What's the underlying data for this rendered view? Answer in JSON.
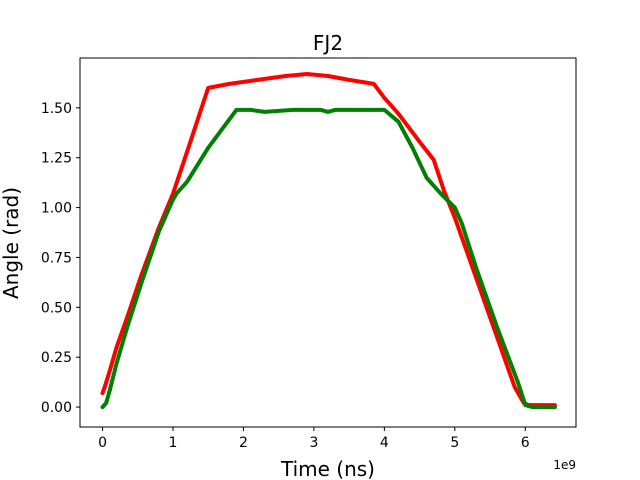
{
  "chart_data": {
    "type": "line",
    "title": "FJ2",
    "xlabel": "Time (ns)",
    "ylabel": "Angle (rad)",
    "x_offset_label": "1e9",
    "x_multiplier": 1000000000,
    "xlim": [
      -0.32,
      6.72
    ],
    "ylim": [
      -0.1,
      1.75
    ],
    "x_ticks": [
      0,
      1,
      2,
      3,
      4,
      5,
      6
    ],
    "x_tick_labels": [
      "0",
      "1",
      "2",
      "3",
      "4",
      "5",
      "6"
    ],
    "y_ticks": [
      0.0,
      0.25,
      0.5,
      0.75,
      1.0,
      1.25,
      1.5
    ],
    "y_tick_labels": [
      "0.00",
      "0.25",
      "0.50",
      "0.75",
      "1.00",
      "1.25",
      "1.50"
    ],
    "grid": false,
    "legend": "none",
    "series": [
      {
        "color": "#ff0000",
        "x": [
          0.0,
          0.03,
          0.1,
          0.2,
          0.35,
          0.55,
          0.8,
          1.0,
          1.2,
          1.5,
          1.8,
          2.2,
          2.6,
          2.9,
          3.2,
          3.5,
          3.85,
          4.0,
          4.2,
          4.5,
          4.7,
          4.85,
          5.0,
          5.3,
          5.6,
          5.85,
          5.98,
          6.05,
          6.2,
          6.42
        ],
        "y": [
          0.07,
          0.1,
          0.18,
          0.3,
          0.45,
          0.66,
          0.9,
          1.07,
          1.28,
          1.6,
          1.62,
          1.64,
          1.66,
          1.67,
          1.66,
          1.64,
          1.62,
          1.55,
          1.47,
          1.33,
          1.24,
          1.08,
          0.95,
          0.65,
          0.35,
          0.1,
          0.02,
          0.01,
          0.01,
          0.01
        ]
      },
      {
        "color": "#008000",
        "x": [
          0.0,
          0.05,
          0.1,
          0.2,
          0.35,
          0.55,
          0.8,
          1.0,
          1.05,
          1.2,
          1.5,
          1.9,
          2.1,
          2.3,
          2.7,
          3.1,
          3.2,
          3.3,
          3.6,
          4.0,
          4.2,
          4.4,
          4.6,
          4.8,
          5.0,
          5.1,
          5.3,
          5.6,
          5.9,
          6.0,
          6.1,
          6.42
        ],
        "y": [
          0.0,
          0.02,
          0.08,
          0.22,
          0.4,
          0.62,
          0.88,
          1.04,
          1.07,
          1.13,
          1.3,
          1.49,
          1.49,
          1.48,
          1.49,
          1.49,
          1.48,
          1.49,
          1.49,
          1.49,
          1.43,
          1.3,
          1.15,
          1.07,
          1.0,
          0.92,
          0.7,
          0.4,
          0.12,
          0.01,
          0.0,
          0.0
        ]
      }
    ]
  }
}
